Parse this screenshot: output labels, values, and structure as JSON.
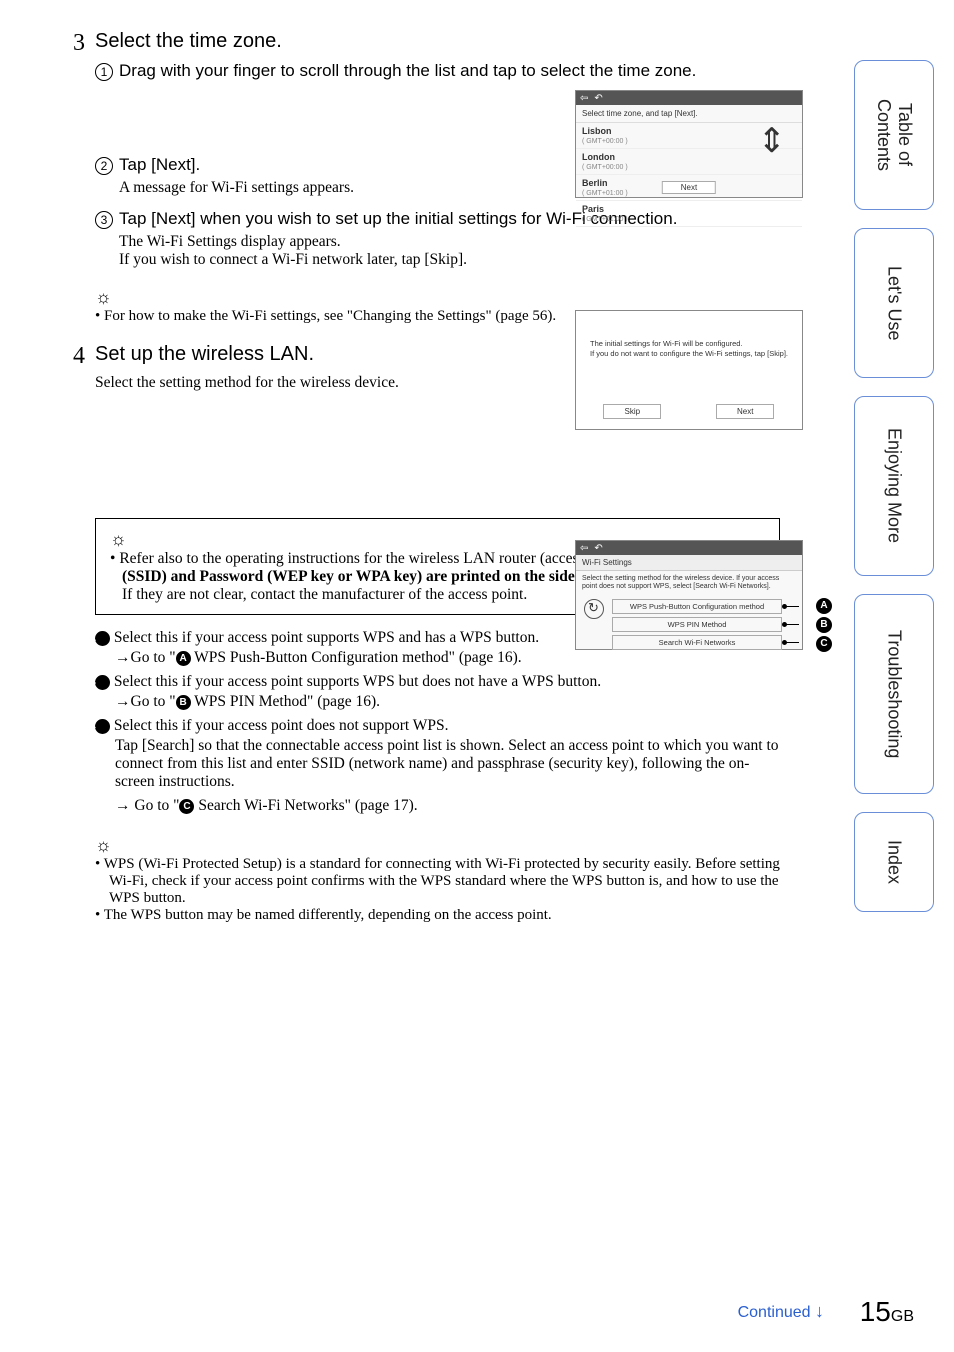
{
  "step3": {
    "num": "3",
    "title": "Select the time zone.",
    "sub1_main": "Drag with your finger to scroll through the list and tap to select the time zone.",
    "sub2_main": "Tap [Next].",
    "sub2_detail": "A message for Wi-Fi settings appears.",
    "sub3_main": "Tap [Next] when you wish to set up the initial settings for Wi-Fi connection.",
    "sub3_detail": "The Wi-Fi Settings display appears.\nIf you wish to connect a Wi-Fi network later, tap [Skip].",
    "hint": "For how to make the Wi-Fi settings, see \"Changing the Settings\" (page 56)."
  },
  "step4": {
    "num": "4",
    "title": "Set up the wireless LAN.",
    "subtitle": "Select the setting method for the wireless device."
  },
  "tip_box": {
    "line1": "Refer also to the operating instructions for the wireless LAN router (access point). ",
    "bold": "The Network name (SSID) and Password (WEP key or WPA key) are printed on the side or rear of the access point.",
    "line2": "If they are not clear, contact the manufacturer of the access point."
  },
  "opts": {
    "a_main": " Select this if your access point supports WPS and has a WPS button.",
    "a_sub": " WPS Push-Button Configuration method\" (page 16).",
    "b_main": " Select this if your access point supports WPS but does not have a WPS button.",
    "b_sub": " WPS PIN Method\" (page 16).",
    "c_main": " Select this if your access point does not support WPS.",
    "c_detail": "Tap [Search] so that the connectable access point list is shown. Select an access point to which you want to connect from this list and enter SSID (network name) and passphrase (security key), following the on-screen instructions.",
    "c_sub": " Search Wi-Fi Networks\" (page 17)."
  },
  "bottom_hints": {
    "h1": "WPS (Wi-Fi Protected Setup) is a standard for connecting with Wi-Fi protected by security easily. Before setting Wi-Fi, check if your access point confirms with the WPS standard where the WPS button is, and how to use the WPS button.",
    "h2": "The WPS button may be named differently, depending on the access point."
  },
  "tz_shot": {
    "header_label": "Select time zone, and tap [Next].",
    "items": [
      {
        "name": "Lisbon",
        "off": "( GMT+00:00 )"
      },
      {
        "name": "London",
        "off": "( GMT+00:00 )"
      },
      {
        "name": "Berlin",
        "off": "( GMT+01:00 )"
      },
      {
        "name": "Paris",
        "off": "( GMT+01:00 )"
      }
    ],
    "next_btn": "Next"
  },
  "wifi_msg_shot": {
    "line1": "The initial settings for Wi-Fi will be configured.",
    "line2": "If you do not want to configure the Wi-Fi settings, tap [Skip].",
    "skip": "Skip",
    "next": "Next"
  },
  "wlan_shot": {
    "tab": "Wi-Fi Settings",
    "msg": "Select the setting method for the wireless device. If your access point does not support WPS, select [Search Wi-Fi Networks].",
    "opt_a": "WPS Push-Button Configuration method",
    "opt_b": "WPS PIN Method",
    "opt_c": "Search Wi-Fi Networks"
  },
  "side": {
    "toc": "Table of\nContents",
    "use": "Let's Use",
    "enjoy": "Enjoying More",
    "trouble": "Troubleshooting",
    "index": "Index"
  },
  "footer": {
    "continued": "Continued",
    "page": "15",
    "gb": "GB"
  },
  "goto_prefix": "→Go to \"",
  "goto_prefix_sp": "→ Go to \""
}
